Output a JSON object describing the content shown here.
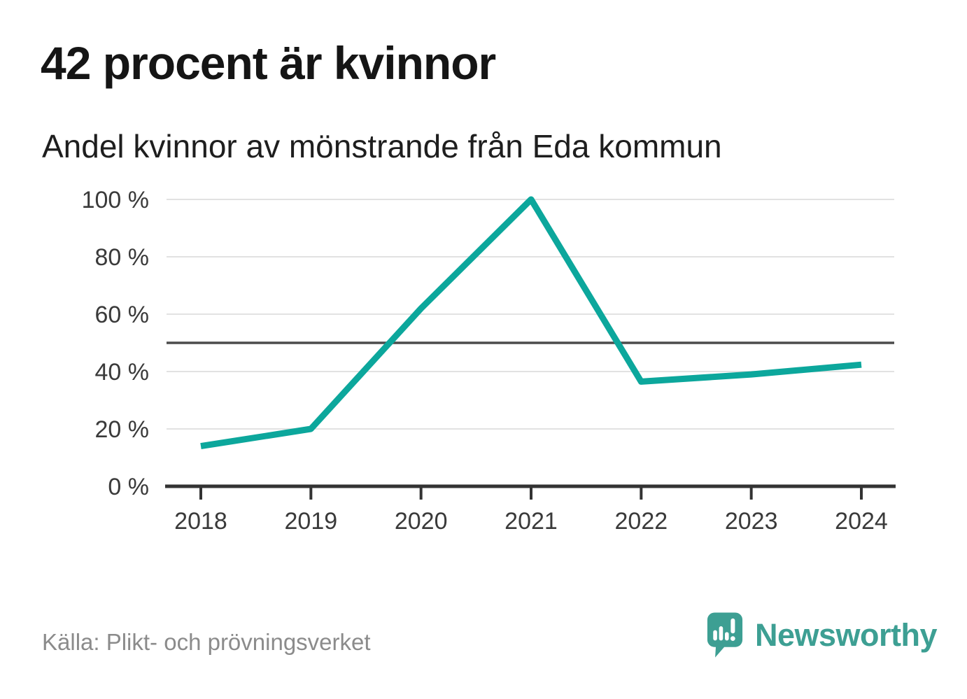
{
  "header": {
    "title": "42 procent är kvinnor",
    "subtitle": "Andel kvinnor av mönstrande från Eda kommun"
  },
  "footer": {
    "source": "Källa: Plikt- och prövningsverket",
    "brand": "Newsworthy"
  },
  "colors": {
    "line": "#0ca79c",
    "grid": "#e2e2e2",
    "reference": "#4c4c4c",
    "axis": "#333333",
    "axis_text": "#3a3a3a",
    "title": "#151515",
    "source_text": "#8b8b8b",
    "brand": "#3d9f93",
    "background": "#ffffff"
  },
  "chart_data": {
    "type": "line",
    "title": "42 procent är kvinnor",
    "subtitle": "Andel kvinnor av mönstrande från Eda kommun",
    "x": [
      2018,
      2019,
      2020,
      2021,
      2022,
      2023,
      2024
    ],
    "series": [
      {
        "name": "Andel kvinnor av mönstrande",
        "values": [
          14,
          20,
          62,
          100,
          36.5,
          39,
          42.4
        ]
      }
    ],
    "ylim": [
      0,
      100
    ],
    "y_ticks": [
      0,
      20,
      40,
      60,
      80,
      100
    ],
    "y_tick_suffix": " %",
    "reference_line": 50,
    "grid": true,
    "legend": "none",
    "xlabel": "",
    "ylabel": "%"
  }
}
